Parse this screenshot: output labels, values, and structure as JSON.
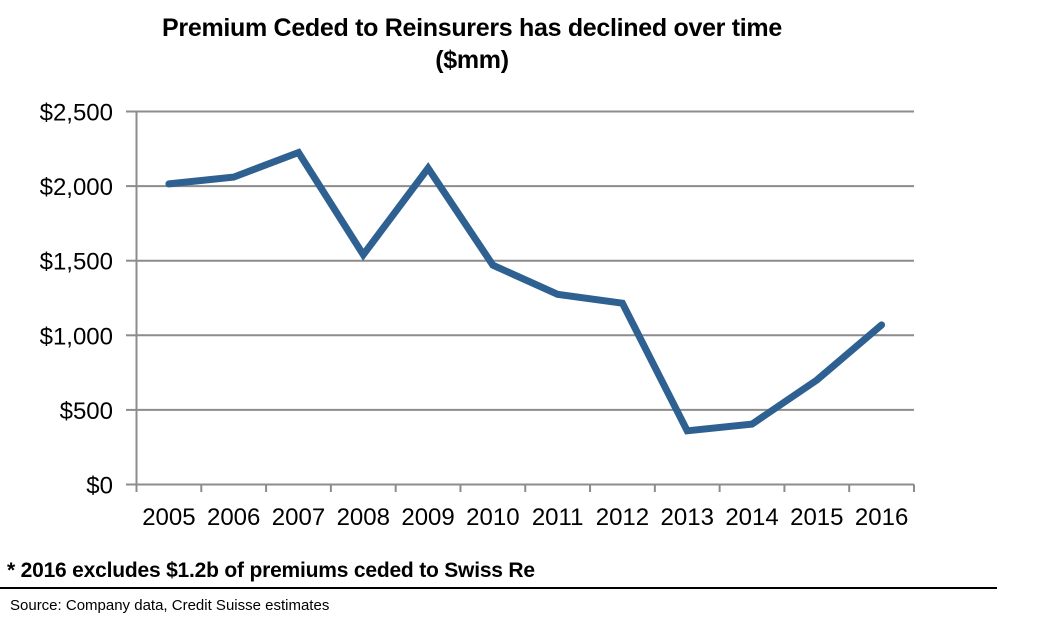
{
  "page": {
    "title": "Premium Ceded to Reinsurers has declined over time",
    "subtitle": "($mm)",
    "footnote": "* 2016 excludes $1.2b of premiums ceded to Swiss Re",
    "source": "Source: Company data, Credit Suisse estimates"
  },
  "chart_data": {
    "type": "line",
    "title": "Premium Ceded to Reinsurers has declined over time",
    "subtitle": "($mm)",
    "categories": [
      "2005",
      "2006",
      "2007",
      "2008",
      "2009",
      "2010",
      "2011",
      "2012",
      "2013",
      "2014",
      "2015",
      "2016"
    ],
    "values": [
      2015,
      2060,
      2225,
      1540,
      2120,
      1470,
      1275,
      1215,
      360,
      405,
      700,
      1070
    ],
    "xlabel": "",
    "ylabel": "",
    "ylim": [
      0,
      2500
    ],
    "y_tick_values": [
      0,
      500,
      1000,
      1500,
      2000,
      2500
    ],
    "y_tick_labels": [
      "$0",
      "$500",
      "$1,000",
      "$1,500",
      "$2,000",
      "$2,500"
    ],
    "grid": true,
    "legend": "none",
    "line_color": "#2E6191",
    "axis_color": "#8C8C8C",
    "gridline_color": "#8C8C8C",
    "text_color": "#000000"
  }
}
